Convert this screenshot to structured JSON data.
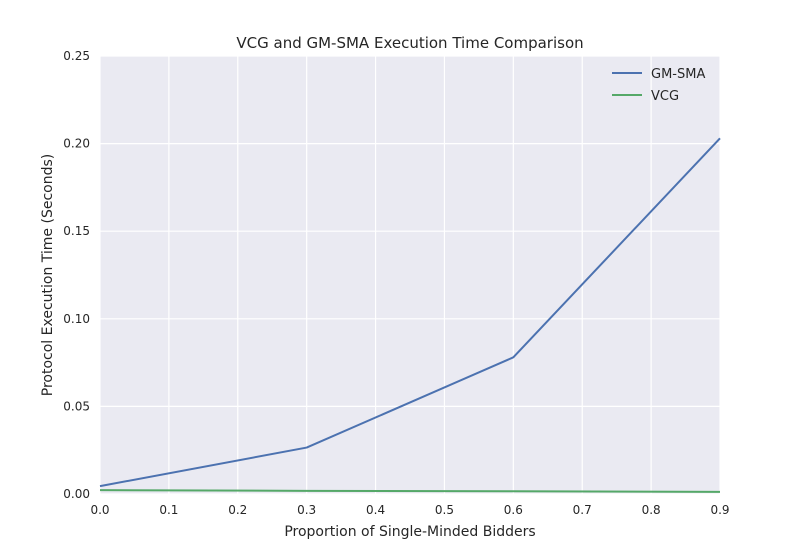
{
  "chart_data": {
    "type": "line",
    "title": "VCG and GM-SMA Execution Time Comparison",
    "xlabel": "Proportion of Single-Minded Bidders",
    "ylabel": "Protocol Execution Time (Seconds)",
    "xlim": [
      0.0,
      0.9
    ],
    "ylim": [
      0.0,
      0.25
    ],
    "x_ticks": [
      "0.0",
      "0.1",
      "0.2",
      "0.3",
      "0.4",
      "0.5",
      "0.6",
      "0.7",
      "0.8",
      "0.9"
    ],
    "y_ticks": [
      "0.00",
      "0.05",
      "0.10",
      "0.15",
      "0.20",
      "0.25"
    ],
    "grid": true,
    "legend_position": "top-right",
    "x": [
      0.0,
      0.3,
      0.6,
      0.9
    ],
    "series": [
      {
        "name": "GM-SMA",
        "color": "#4c72b0",
        "values": [
          0.0045,
          0.0265,
          0.078,
          0.203
        ]
      },
      {
        "name": "VCG",
        "color": "#55a868",
        "values": [
          0.0022,
          0.0018,
          0.0016,
          0.0012
        ]
      }
    ]
  }
}
